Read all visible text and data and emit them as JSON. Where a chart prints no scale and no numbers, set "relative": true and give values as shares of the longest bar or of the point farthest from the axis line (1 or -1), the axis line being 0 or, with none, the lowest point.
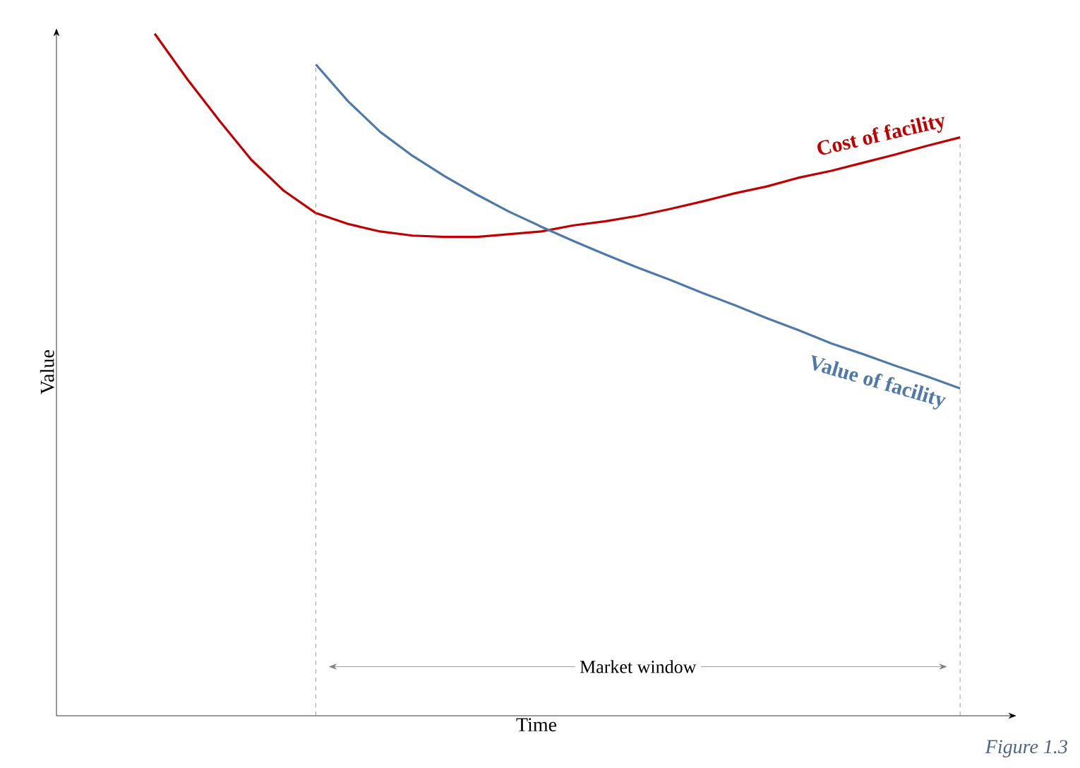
{
  "chart_data": {
    "type": "line",
    "relative": true,
    "xlabel": "Time",
    "ylabel": "Value",
    "marker": "none",
    "line_style": "solid",
    "categories": [
      null,
      null,
      null,
      null,
      null,
      null,
      null,
      null,
      null,
      null,
      null,
      null,
      null,
      null,
      null,
      null,
      null,
      null,
      null,
      null,
      null,
      null,
      null,
      null,
      null,
      null
    ],
    "series": [
      {
        "name": "Cost of facility",
        "color": "#c00000",
        "values": [
          1.0,
          0.934,
          0.873,
          0.815,
          0.77,
          0.737,
          0.721,
          0.71,
          0.704,
          0.702,
          0.702,
          0.706,
          0.71,
          0.719,
          0.725,
          0.733,
          0.743,
          0.754,
          0.766,
          0.776,
          0.789,
          0.799,
          0.811,
          0.823,
          0.836,
          0.848
        ]
      },
      {
        "name": "Value of facility",
        "color": "#4f7aa8",
        "values": [
          null,
          null,
          null,
          null,
          null,
          0.955,
          0.901,
          0.856,
          0.821,
          0.791,
          0.764,
          0.739,
          0.717,
          0.696,
          0.676,
          0.657,
          0.639,
          0.62,
          0.602,
          0.583,
          0.565,
          0.546,
          0.53,
          0.513,
          0.497,
          0.48
        ]
      }
    ],
    "annotations": [
      "Market window",
      "Figure 1.3"
    ]
  }
}
